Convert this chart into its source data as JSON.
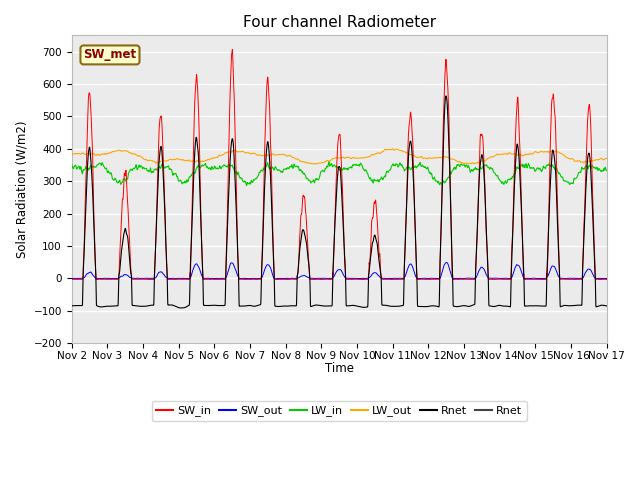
{
  "title": "Four channel Radiometer",
  "ylabel": "Solar Radiation (W/m2)",
  "xlabel": "Time",
  "annotation_text": "SW_met",
  "annotation_color": "#8B0000",
  "annotation_bg": "#FFFFCC",
  "annotation_border": "#8B6914",
  "x_tick_labels": [
    "Nov 2",
    "Nov 3",
    "Nov 4",
    "Nov 5",
    "Nov 6",
    "Nov 7",
    "Nov 8",
    "Nov 9",
    "Nov 10",
    "Nov 11",
    "Nov 12",
    "Nov 13",
    "Nov 14",
    "Nov 15",
    "Nov 16",
    "Nov 17"
  ],
  "ylim": [
    -200,
    750
  ],
  "yticks": [
    -200,
    -100,
    0,
    100,
    200,
    300,
    400,
    500,
    600,
    700
  ],
  "plot_bg": "#EBEBEB",
  "legend_entries": [
    "SW_in",
    "SW_out",
    "LW_in",
    "LW_out",
    "Rnet",
    "Rnet"
  ],
  "legend_colors": [
    "#FF0000",
    "#0000FF",
    "#00CC00",
    "#FFA500",
    "#000000",
    "#444444"
  ],
  "SW_in_color": "#FF0000",
  "SW_out_color": "#0000FF",
  "LW_in_color": "#00CC00",
  "LW_out_color": "#FFA500",
  "Rnet_color": "#000000",
  "Rnet2_color": "#444444"
}
